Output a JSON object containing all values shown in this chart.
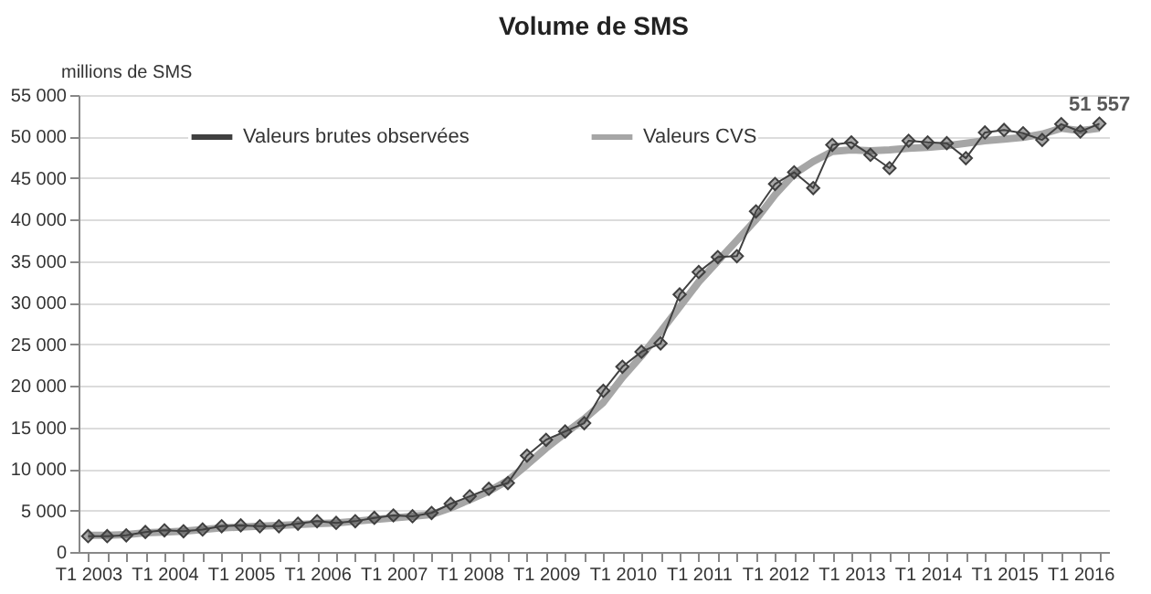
{
  "chart_data": {
    "type": "line",
    "title": "Volume de SMS",
    "ylabel": "millions de SMS",
    "categories": [
      "T1 2003",
      null,
      null,
      null,
      "T1 2004",
      null,
      null,
      null,
      "T1 2005",
      null,
      null,
      null,
      "T1 2006",
      null,
      null,
      null,
      "T1 2007",
      null,
      null,
      null,
      "T1 2008",
      null,
      null,
      null,
      "T1 2009",
      null,
      null,
      null,
      "T1 2010",
      null,
      null,
      null,
      "T1 2011",
      null,
      null,
      null,
      "T1 2012",
      null,
      null,
      null,
      "T1 2013",
      null,
      null,
      null,
      "T1 2014",
      null,
      null,
      null,
      "T1 2015",
      null,
      null,
      null,
      "T1 2016",
      null
    ],
    "series": [
      {
        "name": "Valeurs brutes observées",
        "color": "#404040",
        "marker": "diamond",
        "values": [
          1900,
          1900,
          2000,
          2400,
          2600,
          2500,
          2700,
          3100,
          3200,
          3100,
          3100,
          3400,
          3700,
          3500,
          3700,
          4100,
          4400,
          4300,
          4700,
          5800,
          6700,
          7600,
          8300,
          11600,
          13500,
          14500,
          15500,
          19400,
          22300,
          24100,
          25100,
          31000,
          33700,
          35500,
          35600,
          41000,
          44300,
          45700,
          43800,
          49000,
          49300,
          47800,
          46200,
          49500,
          49300,
          49200,
          47400,
          50500,
          50800,
          50400,
          49600,
          51500,
          50600,
          51557
        ],
        "value_labels": [
          null,
          null,
          null,
          null,
          null,
          null,
          null,
          null,
          null,
          null,
          null,
          null,
          null,
          null,
          null,
          null,
          null,
          null,
          null,
          null,
          null,
          null,
          null,
          null,
          null,
          null,
          null,
          null,
          null,
          null,
          null,
          null,
          null,
          null,
          null,
          null,
          null,
          null,
          null,
          null,
          null,
          null,
          null,
          null,
          null,
          null,
          null,
          null,
          null,
          null,
          null,
          null,
          null,
          "51 557"
        ]
      },
      {
        "name": "Valeurs CVS",
        "color": "#a6a6a6",
        "marker": "none",
        "values": [
          2000,
          2000,
          2100,
          2300,
          2400,
          2500,
          2700,
          2900,
          3000,
          3100,
          3200,
          3300,
          3400,
          3500,
          3700,
          3900,
          4100,
          4300,
          4500,
          5300,
          6300,
          7300,
          8600,
          10500,
          12500,
          14300,
          16000,
          18000,
          21000,
          23600,
          26500,
          29500,
          32500,
          35000,
          37500,
          40000,
          43000,
          45500,
          47000,
          48200,
          48400,
          48300,
          48400,
          48600,
          48700,
          48900,
          49200,
          49500,
          49700,
          49900,
          50300,
          51000,
          50700,
          51000
        ]
      }
    ],
    "ylim": [
      0,
      55000
    ],
    "yticks": [
      0,
      {
        "value": 5000,
        "label": "5 000"
      },
      {
        "value": 10000,
        "label": "10 000"
      },
      {
        "value": 15000,
        "label": "15 000"
      },
      {
        "value": 20000,
        "label": "20 000"
      },
      {
        "value": 25000,
        "label": "25 000"
      },
      {
        "value": 30000,
        "label": "30 000"
      },
      {
        "value": 35000,
        "label": "35 000"
      },
      {
        "value": 40000,
        "label": "40 000"
      },
      {
        "value": 45000,
        "label": "45 000"
      },
      {
        "value": 50000,
        "label": "50 000"
      },
      {
        "value": 55000,
        "label": "55 000"
      }
    ],
    "grid": "y",
    "legend": "top"
  }
}
